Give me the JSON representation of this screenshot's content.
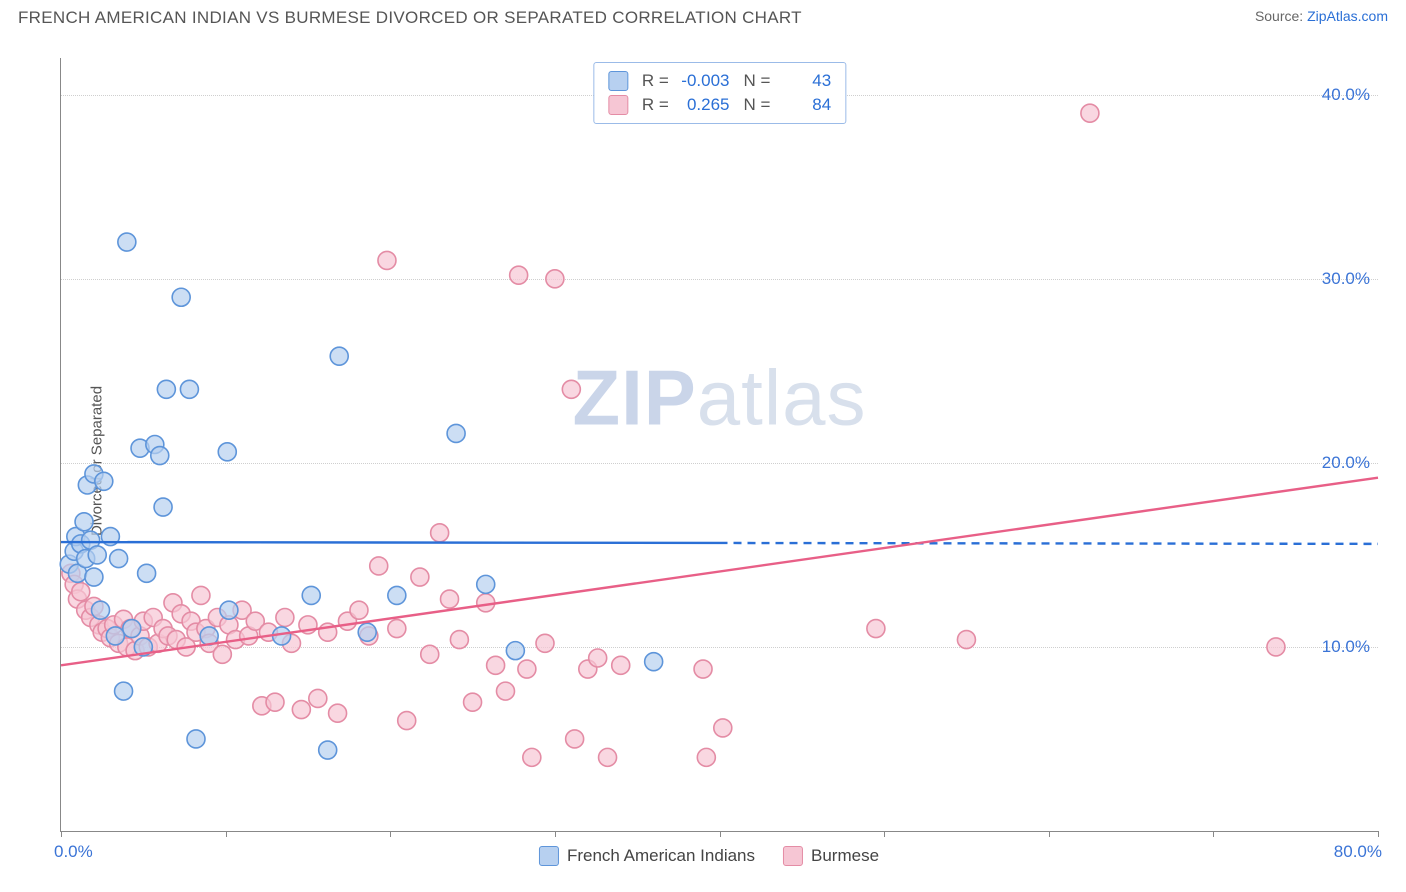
{
  "header": {
    "title": "FRENCH AMERICAN INDIAN VS BURMESE DIVORCED OR SEPARATED CORRELATION CHART",
    "source_prefix": "Source: ",
    "source_link": "ZipAtlas.com"
  },
  "watermark": {
    "zip": "ZIP",
    "atlas": "atlas"
  },
  "chart": {
    "type": "scatter",
    "ylabel": "Divorced or Separated",
    "xlim": [
      0,
      80
    ],
    "ylim": [
      0,
      42
    ],
    "xticks": [
      0,
      10,
      20,
      30,
      40,
      50,
      60,
      70,
      80
    ],
    "xtick_labels": {
      "0": "0.0%",
      "80": "80.0%"
    },
    "yticks": [
      10,
      20,
      30,
      40
    ],
    "ytick_labels": {
      "10": "10.0%",
      "20": "20.0%",
      "30": "30.0%",
      "40": "40.0%"
    },
    "grid_color": "#cfcfcf",
    "axis_color": "#888888",
    "background": "#ffffff",
    "marker_radius": 9,
    "marker_stroke_width": 1.6,
    "line_width": 2.4,
    "series": [
      {
        "id": "french_american_indians",
        "label": "French American Indians",
        "fill": "#b7d0f0",
        "stroke": "#5e95da",
        "line_color": "#2a6fd6",
        "R": "-0.003",
        "N": "43",
        "trend": {
          "solid_from_x": 0,
          "solid_to_x": 40,
          "dash_to_x": 80,
          "y1": 15.7,
          "y2": 15.6
        },
        "points": [
          [
            0.5,
            14.5
          ],
          [
            0.8,
            15.2
          ],
          [
            0.9,
            16.0
          ],
          [
            1.0,
            14.0
          ],
          [
            1.2,
            15.6
          ],
          [
            1.4,
            16.8
          ],
          [
            1.5,
            14.8
          ],
          [
            1.6,
            18.8
          ],
          [
            1.8,
            15.8
          ],
          [
            2.0,
            19.4
          ],
          [
            2.0,
            13.8
          ],
          [
            2.2,
            15.0
          ],
          [
            2.4,
            12.0
          ],
          [
            2.6,
            19.0
          ],
          [
            3.0,
            16.0
          ],
          [
            3.3,
            10.6
          ],
          [
            3.5,
            14.8
          ],
          [
            3.8,
            7.6
          ],
          [
            4.0,
            32.0
          ],
          [
            4.3,
            11.0
          ],
          [
            4.8,
            20.8
          ],
          [
            5.0,
            10.0
          ],
          [
            5.2,
            14.0
          ],
          [
            5.7,
            21.0
          ],
          [
            6.0,
            20.4
          ],
          [
            6.2,
            17.6
          ],
          [
            6.4,
            24.0
          ],
          [
            7.3,
            29.0
          ],
          [
            7.8,
            24.0
          ],
          [
            8.2,
            5.0
          ],
          [
            9.0,
            10.6
          ],
          [
            10.1,
            20.6
          ],
          [
            10.2,
            12.0
          ],
          [
            13.4,
            10.6
          ],
          [
            15.2,
            12.8
          ],
          [
            16.2,
            4.4
          ],
          [
            16.9,
            25.8
          ],
          [
            18.6,
            10.8
          ],
          [
            20.4,
            12.8
          ],
          [
            24.0,
            21.6
          ],
          [
            25.8,
            13.4
          ],
          [
            27.6,
            9.8
          ],
          [
            36.0,
            9.2
          ]
        ]
      },
      {
        "id": "burmese",
        "label": "Burmese",
        "fill": "#f6c6d4",
        "stroke": "#e48ca5",
        "line_color": "#e85f87",
        "R": "0.265",
        "N": "84",
        "trend": {
          "solid_from_x": 0,
          "solid_to_x": 80,
          "dash_to_x": 80,
          "y1": 9.0,
          "y2": 19.2
        },
        "points": [
          [
            0.6,
            14.0
          ],
          [
            0.8,
            13.4
          ],
          [
            1.0,
            12.6
          ],
          [
            1.2,
            13.0
          ],
          [
            1.5,
            12.0
          ],
          [
            1.8,
            11.6
          ],
          [
            2.0,
            12.2
          ],
          [
            2.3,
            11.2
          ],
          [
            2.5,
            10.8
          ],
          [
            2.8,
            11.0
          ],
          [
            3.0,
            10.5
          ],
          [
            3.2,
            11.2
          ],
          [
            3.5,
            10.2
          ],
          [
            3.8,
            11.5
          ],
          [
            4.0,
            10.0
          ],
          [
            4.2,
            11.0
          ],
          [
            4.5,
            9.8
          ],
          [
            4.8,
            10.6
          ],
          [
            5.0,
            11.4
          ],
          [
            5.3,
            10.0
          ],
          [
            5.6,
            11.6
          ],
          [
            5.9,
            10.2
          ],
          [
            6.2,
            11.0
          ],
          [
            6.5,
            10.6
          ],
          [
            6.8,
            12.4
          ],
          [
            7.0,
            10.4
          ],
          [
            7.3,
            11.8
          ],
          [
            7.6,
            10.0
          ],
          [
            7.9,
            11.4
          ],
          [
            8.2,
            10.8
          ],
          [
            8.5,
            12.8
          ],
          [
            8.8,
            11.0
          ],
          [
            9.0,
            10.2
          ],
          [
            9.5,
            11.6
          ],
          [
            9.8,
            9.6
          ],
          [
            10.2,
            11.2
          ],
          [
            10.6,
            10.4
          ],
          [
            11.0,
            12.0
          ],
          [
            11.4,
            10.6
          ],
          [
            11.8,
            11.4
          ],
          [
            12.2,
            6.8
          ],
          [
            12.6,
            10.8
          ],
          [
            13.0,
            7.0
          ],
          [
            13.6,
            11.6
          ],
          [
            14.0,
            10.2
          ],
          [
            14.6,
            6.6
          ],
          [
            15.0,
            11.2
          ],
          [
            15.6,
            7.2
          ],
          [
            16.2,
            10.8
          ],
          [
            16.8,
            6.4
          ],
          [
            17.4,
            11.4
          ],
          [
            18.1,
            12.0
          ],
          [
            18.7,
            10.6
          ],
          [
            19.3,
            14.4
          ],
          [
            19.8,
            31.0
          ],
          [
            20.4,
            11.0
          ],
          [
            21.0,
            6.0
          ],
          [
            21.8,
            13.8
          ],
          [
            22.4,
            9.6
          ],
          [
            23.0,
            16.2
          ],
          [
            23.6,
            12.6
          ],
          [
            24.2,
            10.4
          ],
          [
            25.0,
            7.0
          ],
          [
            25.8,
            12.4
          ],
          [
            26.4,
            9.0
          ],
          [
            27.0,
            7.6
          ],
          [
            27.8,
            30.2
          ],
          [
            28.3,
            8.8
          ],
          [
            28.6,
            4.0
          ],
          [
            29.4,
            10.2
          ],
          [
            30.0,
            30.0
          ],
          [
            31.0,
            24.0
          ],
          [
            31.2,
            5.0
          ],
          [
            32.0,
            8.8
          ],
          [
            32.6,
            9.4
          ],
          [
            33.2,
            4.0
          ],
          [
            34.0,
            9.0
          ],
          [
            39.0,
            8.8
          ],
          [
            39.2,
            4.0
          ],
          [
            40.2,
            5.6
          ],
          [
            49.5,
            11.0
          ],
          [
            55.0,
            10.4
          ],
          [
            62.5,
            39.0
          ],
          [
            73.8,
            10.0
          ]
        ]
      }
    ]
  },
  "legend_top": {
    "R_label": "R = ",
    "N_label": "N = "
  }
}
